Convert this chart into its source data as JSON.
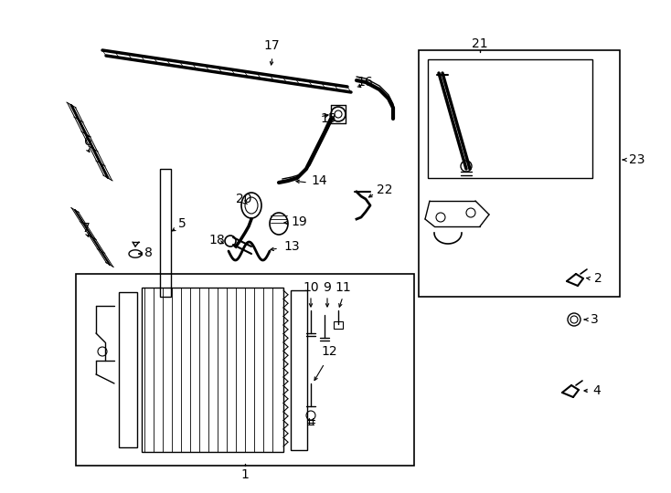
{
  "bg_color": "#ffffff",
  "line_color": "#000000",
  "fig_width": 7.34,
  "fig_height": 5.4,
  "dpi": 100,
  "fs": 9
}
